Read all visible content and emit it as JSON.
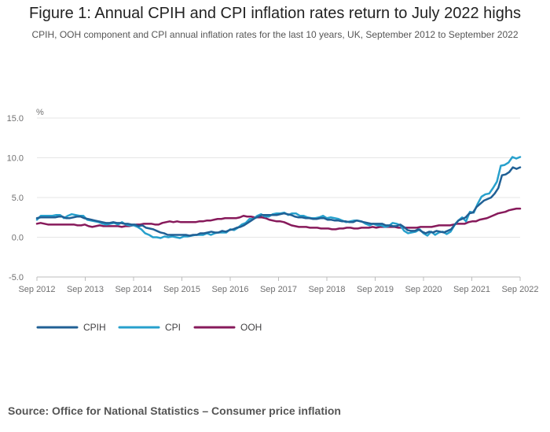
{
  "title": "Figure 1: Annual CPIH and CPI inflation rates return to July 2022 highs",
  "subtitle": "CPIH, OOH component and CPI annual inflation rates for the last 10 years, UK, September 2012 to September 2022",
  "source": "Source: Office for National Statistics – Consumer price inflation",
  "chart_data": {
    "type": "line",
    "title": "Figure 1: Annual CPIH and CPI inflation rates return to July 2022 highs",
    "ylabel": "%",
    "xlabel": "",
    "ylim": [
      -5.0,
      15.0
    ],
    "y_ticks": [
      "15.0",
      "10.0",
      "5.0",
      "0.0",
      "-5.0"
    ],
    "y_tick_values": [
      15,
      10,
      5,
      0,
      -5
    ],
    "x_ticks": [
      "Sep 2012",
      "Sep 2013",
      "Sep 2014",
      "Sep 2015",
      "Sep 2016",
      "Sep 2017",
      "Sep 2018",
      "Sep 2019",
      "Sep 2020",
      "Sep 2021",
      "Sep 2022"
    ],
    "x_start": "Sep 2012",
    "x_end": "Sep 2022",
    "grid": "horizontal",
    "legend_position": "bottom-left",
    "series": [
      {
        "name": "CPIH",
        "color": "#206095",
        "values": [
          2.4,
          2.5,
          2.5,
          2.5,
          2.5,
          2.5,
          2.6,
          2.6,
          2.4,
          2.4,
          2.5,
          2.6,
          2.6,
          2.4,
          2.3,
          2.2,
          2.1,
          2.0,
          1.9,
          1.8,
          1.8,
          1.9,
          1.8,
          1.8,
          1.7,
          1.7,
          1.6,
          1.6,
          1.4,
          1.5,
          1.2,
          1.1,
          1.0,
          0.8,
          0.6,
          0.5,
          0.3,
          0.3,
          0.3,
          0.3,
          0.3,
          0.3,
          0.2,
          0.3,
          0.3,
          0.5,
          0.5,
          0.6,
          0.7,
          0.6,
          0.6,
          0.8,
          0.7,
          0.9,
          1.0,
          1.2,
          1.3,
          1.5,
          1.8,
          2.1,
          2.4,
          2.6,
          2.8,
          2.8,
          2.8,
          2.8,
          2.8,
          2.9,
          3.0,
          2.9,
          2.8,
          2.6,
          2.5,
          2.5,
          2.4,
          2.4,
          2.3,
          2.3,
          2.4,
          2.4,
          2.2,
          2.2,
          2.1,
          2.1,
          2.0,
          2.0,
          1.9,
          1.9,
          2.1,
          2.0,
          1.9,
          1.8,
          1.7,
          1.7,
          1.7,
          1.7,
          1.5,
          1.5,
          1.4,
          1.4,
          1.6,
          1.3,
          0.9,
          0.8,
          0.8,
          1.0,
          0.7,
          0.5,
          0.7,
          0.6,
          0.8,
          0.7,
          0.6,
          0.8,
          1.0,
          1.6,
          2.1,
          2.3,
          2.5,
          3.0,
          3.1,
          3.8,
          4.2,
          4.6,
          4.8,
          5.0,
          5.5,
          6.2,
          7.8,
          7.9,
          8.2,
          8.8,
          8.6,
          8.8
        ]
      },
      {
        "name": "CPI",
        "color": "#27A0CC",
        "values": [
          2.2,
          2.7,
          2.7,
          2.7,
          2.7,
          2.8,
          2.8,
          2.4,
          2.7,
          2.9,
          2.8,
          2.7,
          2.7,
          2.2,
          2.1,
          2.0,
          1.9,
          1.7,
          1.6,
          1.7,
          1.8,
          1.6,
          1.9,
          1.6,
          1.5,
          1.5,
          1.3,
          1.0,
          0.5,
          0.3,
          0.0,
          0.0,
          -0.1,
          0.1,
          0.0,
          0.1,
          0.0,
          -0.1,
          0.1,
          0.1,
          0.2,
          0.3,
          0.3,
          0.3,
          0.5,
          0.3,
          0.5,
          0.6,
          0.6,
          0.6,
          1.0,
          0.9,
          1.2,
          1.6,
          1.8,
          2.3,
          2.3,
          2.7,
          2.9,
          2.6,
          2.6,
          2.9,
          3.0,
          3.0,
          3.1,
          2.8,
          3.0,
          3.0,
          2.7,
          2.7,
          2.5,
          2.4,
          2.4,
          2.5,
          2.7,
          2.4,
          2.5,
          2.4,
          2.3,
          2.1,
          1.9,
          2.0,
          2.1,
          2.1,
          2.0,
          1.7,
          1.5,
          1.7,
          1.5,
          1.5,
          1.3,
          1.4,
          1.8,
          1.7,
          1.5,
          0.8,
          0.5,
          0.6,
          0.7,
          1.0,
          0.5,
          0.2,
          0.7,
          0.3,
          0.6,
          0.7,
          0.4,
          0.7,
          1.5,
          2.1,
          2.5,
          2.0,
          3.2,
          3.1,
          4.2,
          5.1,
          5.4,
          5.5,
          6.2,
          7.0,
          9.0,
          9.1,
          9.4,
          10.1,
          9.9,
          10.1
        ]
      },
      {
        "name": "OOH",
        "color": "#871A5B",
        "values": [
          1.7,
          1.8,
          1.7,
          1.6,
          1.6,
          1.6,
          1.6,
          1.6,
          1.6,
          1.6,
          1.6,
          1.5,
          1.5,
          1.6,
          1.4,
          1.3,
          1.4,
          1.5,
          1.4,
          1.4,
          1.4,
          1.4,
          1.4,
          1.3,
          1.4,
          1.4,
          1.5,
          1.6,
          1.6,
          1.7,
          1.7,
          1.7,
          1.6,
          1.6,
          1.8,
          1.9,
          2.0,
          1.9,
          2.0,
          1.9,
          1.9,
          1.9,
          1.9,
          1.9,
          2.0,
          2.0,
          2.1,
          2.1,
          2.2,
          2.3,
          2.3,
          2.4,
          2.4,
          2.4,
          2.4,
          2.5,
          2.7,
          2.6,
          2.6,
          2.5,
          2.5,
          2.5,
          2.4,
          2.2,
          2.1,
          2.0,
          2.0,
          1.9,
          1.7,
          1.5,
          1.4,
          1.3,
          1.3,
          1.3,
          1.2,
          1.2,
          1.2,
          1.1,
          1.1,
          1.1,
          1.0,
          1.0,
          1.1,
          1.1,
          1.2,
          1.2,
          1.1,
          1.1,
          1.2,
          1.2,
          1.2,
          1.3,
          1.2,
          1.3,
          1.3,
          1.3,
          1.3,
          1.3,
          1.2,
          1.2,
          1.2,
          1.2,
          1.2,
          1.2,
          1.3,
          1.3,
          1.3,
          1.3,
          1.4,
          1.5,
          1.5,
          1.5,
          1.5,
          1.6,
          1.7,
          1.7,
          1.7,
          1.9,
          2.0,
          2.0,
          2.2,
          2.3,
          2.4,
          2.6,
          2.8,
          3.0,
          3.1,
          3.2,
          3.4,
          3.5,
          3.6,
          3.6
        ]
      }
    ]
  }
}
